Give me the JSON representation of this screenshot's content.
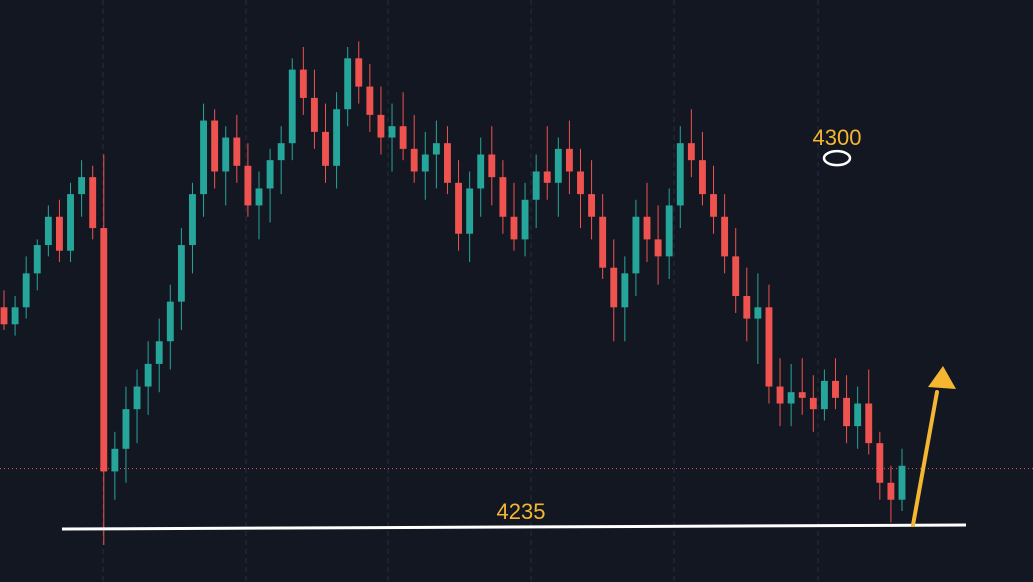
{
  "chart_data": {
    "type": "candlestick",
    "title": "",
    "xlabel": "",
    "ylabel": "",
    "ylim": [
      4232,
      4323
    ],
    "grid": true,
    "colors": {
      "background": "#131722",
      "up": "#26a69a",
      "down": "#ef5350",
      "annotation_text": "#f5b731",
      "arrow": "#f5b731",
      "support_line": "#ffffff",
      "price_line": "#ef5350"
    },
    "annotations": {
      "resistance_label": "4300",
      "resistance_value": 4300,
      "support_label": "4235",
      "support_value": 4235
    },
    "current_price": 4245.5,
    "candles": [
      [
        4274,
        4277,
        4270,
        4271
      ],
      [
        4271,
        4276,
        4269,
        4274
      ],
      [
        4274,
        4283,
        4272,
        4280
      ],
      [
        4280,
        4286,
        4277,
        4285
      ],
      [
        4285,
        4292,
        4283,
        4290
      ],
      [
        4290,
        4293,
        4282,
        4284
      ],
      [
        4284,
        4296,
        4282,
        4294
      ],
      [
        4294,
        4300,
        4290,
        4297
      ],
      [
        4297,
        4299,
        4286,
        4288
      ],
      [
        4288,
        4301,
        4232,
        4245
      ],
      [
        4245,
        4252,
        4240,
        4249
      ],
      [
        4249,
        4260,
        4243,
        4256
      ],
      [
        4256,
        4263,
        4250,
        4260
      ],
      [
        4260,
        4268,
        4255,
        4264
      ],
      [
        4264,
        4272,
        4259,
        4268
      ],
      [
        4268,
        4278,
        4263,
        4275
      ],
      [
        4275,
        4288,
        4270,
        4285
      ],
      [
        4285,
        4296,
        4280,
        4294
      ],
      [
        4294,
        4310,
        4290,
        4307
      ],
      [
        4307,
        4309,
        4295,
        4298
      ],
      [
        4298,
        4306,
        4292,
        4304
      ],
      [
        4304,
        4308,
        4296,
        4299
      ],
      [
        4299,
        4303,
        4290,
        4292
      ],
      [
        4292,
        4298,
        4286,
        4295
      ],
      [
        4295,
        4302,
        4289,
        4300
      ],
      [
        4300,
        4306,
        4294,
        4303
      ],
      [
        4303,
        4318,
        4300,
        4316
      ],
      [
        4316,
        4320,
        4308,
        4311
      ],
      [
        4311,
        4316,
        4302,
        4305
      ],
      [
        4305,
        4310,
        4296,
        4299
      ],
      [
        4299,
        4312,
        4295,
        4309
      ],
      [
        4309,
        4320,
        4306,
        4318
      ],
      [
        4318,
        4321,
        4310,
        4313
      ],
      [
        4313,
        4317,
        4305,
        4308
      ],
      [
        4308,
        4313,
        4301,
        4304
      ],
      [
        4304,
        4310,
        4298,
        4306
      ],
      [
        4306,
        4312,
        4300,
        4302
      ],
      [
        4302,
        4308,
        4296,
        4298
      ],
      [
        4298,
        4305,
        4293,
        4301
      ],
      [
        4301,
        4307,
        4295,
        4303
      ],
      [
        4303,
        4306,
        4294,
        4296
      ],
      [
        4296,
        4300,
        4284,
        4287
      ],
      [
        4287,
        4298,
        4282,
        4295
      ],
      [
        4295,
        4304,
        4290,
        4301
      ],
      [
        4301,
        4306,
        4292,
        4297
      ],
      [
        4297,
        4300,
        4287,
        4290
      ],
      [
        4290,
        4296,
        4284,
        4286
      ],
      [
        4286,
        4296,
        4283,
        4293
      ],
      [
        4293,
        4301,
        4288,
        4298
      ],
      [
        4298,
        4306,
        4293,
        4296
      ],
      [
        4296,
        4304,
        4290,
        4302
      ],
      [
        4302,
        4307,
        4294,
        4298
      ],
      [
        4298,
        4302,
        4288,
        4294
      ],
      [
        4294,
        4300,
        4286,
        4290
      ],
      [
        4290,
        4294,
        4279,
        4281
      ],
      [
        4281,
        4286,
        4268,
        4274
      ],
      [
        4274,
        4283,
        4268,
        4280
      ],
      [
        4280,
        4293,
        4276,
        4290
      ],
      [
        4290,
        4296,
        4282,
        4286
      ],
      [
        4286,
        4292,
        4278,
        4283
      ],
      [
        4283,
        4295,
        4279,
        4292
      ],
      [
        4292,
        4306,
        4288,
        4303
      ],
      [
        4303,
        4309,
        4297,
        4300
      ],
      [
        4300,
        4305,
        4292,
        4294
      ],
      [
        4294,
        4299,
        4287,
        4290
      ],
      [
        4290,
        4294,
        4280,
        4283
      ],
      [
        4283,
        4288,
        4273,
        4276
      ],
      [
        4276,
        4281,
        4268,
        4272
      ],
      [
        4272,
        4280,
        4264,
        4274
      ],
      [
        4274,
        4278,
        4257,
        4260
      ],
      [
        4260,
        4265,
        4253,
        4257
      ],
      [
        4257,
        4264,
        4253,
        4259
      ],
      [
        4259,
        4265,
        4255,
        4258
      ],
      [
        4258,
        4262,
        4252,
        4256
      ],
      [
        4256,
        4263,
        4254,
        4261
      ],
      [
        4261,
        4265,
        4256,
        4258
      ],
      [
        4258,
        4262,
        4250,
        4253
      ],
      [
        4253,
        4260,
        4249,
        4257
      ],
      [
        4257,
        4263,
        4248,
        4250
      ],
      [
        4250,
        4252,
        4240,
        4243
      ],
      [
        4243,
        4246,
        4236,
        4240
      ],
      [
        4240,
        4249,
        4238,
        4246
      ]
    ]
  }
}
